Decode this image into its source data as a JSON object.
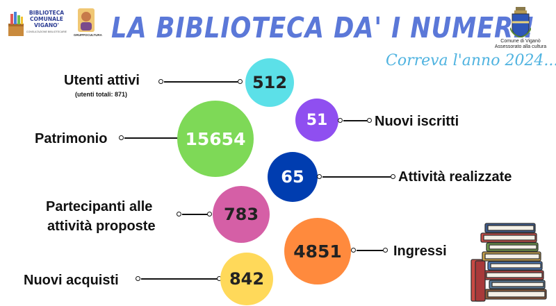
{
  "header": {
    "title": "LA BIBLIOTECA DA' I NUMERI!",
    "subtitle": "Correva l'anno 2024..."
  },
  "logos": {
    "library_lines": [
      "BIBLIOTECA",
      "COMUNALE",
      "VIGANO'"
    ],
    "library_tagline": "CONSULTAZIONE BIBLIOTECARIE",
    "gruppo": "GRUPPOCULTURA",
    "comune_name": "Comune di Viganò",
    "comune_office": "Assessorato alla cultura"
  },
  "stats": {
    "utenti_attivi": {
      "label": "Utenti attivi",
      "note": "(utenti totali: 871)",
      "value": "512",
      "color": "#5ce0e8"
    },
    "nuovi_iscritti": {
      "label": "Nuovi iscritti",
      "value": "51",
      "color": "#8f4ff0"
    },
    "patrimonio": {
      "label": "Patrimonio",
      "value": "15654",
      "color": "#7ed957"
    },
    "attivita": {
      "label": "Attività realizzate",
      "value": "65",
      "color": "#003db0"
    },
    "partecipanti": {
      "label_line1": "Partecipanti alle",
      "label_line2": "attività proposte",
      "value": "783",
      "color": "#d55fa6"
    },
    "ingressi": {
      "label": "Ingressi",
      "value": "4851",
      "color": "#ff8a3d"
    },
    "nuovi_acquisti": {
      "label": "Nuovi acquisti",
      "value": "842",
      "color": "#ffd95a"
    }
  }
}
